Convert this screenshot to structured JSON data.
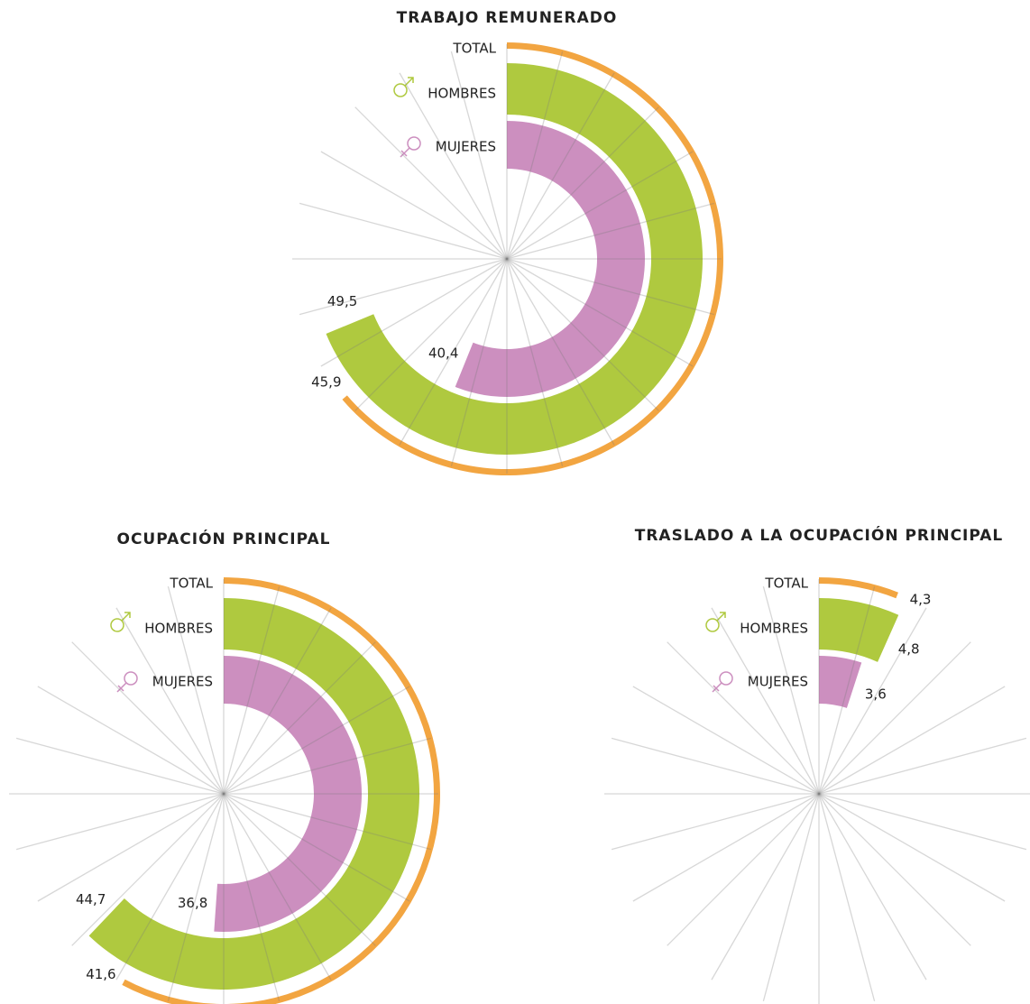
{
  "chart_data": [
    {
      "type": "radial_bar",
      "title": "TRABAJO REMUNERADO",
      "xlim": [
        0,
        72
      ],
      "xticks": [
        0,
        3,
        6,
        9,
        12,
        15,
        18,
        21,
        24,
        27,
        30,
        33,
        36,
        39,
        42,
        45,
        48,
        51,
        54,
        57,
        60,
        63,
        66,
        69
      ],
      "series": [
        {
          "name": "TOTAL",
          "color": "#f2a541",
          "values": [
            45.9
          ],
          "value_labels": [
            "45,9"
          ]
        },
        {
          "name": "HOMBRES",
          "color": "#afc93f",
          "values": [
            49.5
          ],
          "value_labels": [
            "49,5"
          ]
        },
        {
          "name": "MUJERES",
          "color": "#cc8fbf",
          "values": [
            40.4
          ],
          "value_labels": [
            "40,4"
          ]
        }
      ]
    },
    {
      "type": "radial_bar",
      "title": "OCUPACIÓN PRINCIPAL",
      "xlim": [
        0,
        72
      ],
      "xticks": [
        0,
        3,
        6,
        9,
        12,
        15,
        18,
        21,
        24,
        27,
        30,
        33,
        36,
        39,
        42,
        45,
        48,
        51,
        54,
        57,
        60,
        63,
        66,
        69
      ],
      "series": [
        {
          "name": "TOTAL",
          "color": "#f2a541",
          "values": [
            41.6
          ],
          "value_labels": [
            "41,6"
          ]
        },
        {
          "name": "HOMBRES",
          "color": "#afc93f",
          "values": [
            44.7
          ],
          "value_labels": [
            "44,7"
          ]
        },
        {
          "name": "MUJERES",
          "color": "#cc8fbf",
          "values": [
            36.8
          ],
          "value_labels": [
            "36,8"
          ]
        }
      ]
    },
    {
      "type": "radial_bar",
      "title": "TRASLADO A LA OCUPACIÓN PRINCIPAL",
      "xlim": [
        0,
        72
      ],
      "xticks": [
        0,
        3,
        6,
        9,
        12,
        15,
        18,
        21,
        24,
        27,
        30,
        33,
        36,
        39,
        42,
        45,
        48,
        51,
        54,
        57,
        60,
        63,
        66,
        69
      ],
      "series": [
        {
          "name": "TOTAL",
          "color": "#f2a541",
          "values": [
            4.3
          ],
          "value_labels": [
            "4,3"
          ]
        },
        {
          "name": "HOMBRES",
          "color": "#afc93f",
          "values": [
            4.8
          ],
          "value_labels": [
            "4,8"
          ]
        },
        {
          "name": "MUJERES",
          "color": "#cc8fbf",
          "values": [
            3.6
          ],
          "value_labels": [
            "3,6"
          ]
        }
      ]
    }
  ]
}
